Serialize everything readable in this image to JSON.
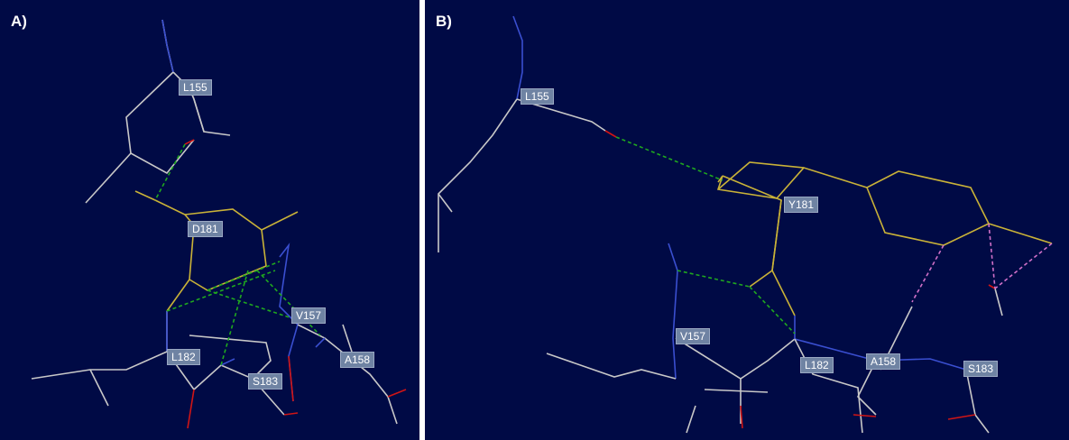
{
  "panels": [
    {
      "label": "A)",
      "residues": [
        "L155",
        "D181",
        "V157",
        "L182",
        "A158",
        "S183"
      ]
    },
    {
      "label": "B)",
      "residues": [
        "L155",
        "Y181",
        "V157",
        "L182",
        "A158",
        "S183"
      ]
    }
  ],
  "colors": {
    "background": "#000a45",
    "carbon": "#c8c8c8",
    "nitrogen": "#3a4fd0",
    "oxygen": "#d01515",
    "ligand": "#c9b238",
    "hbond_green": "#1fa81f",
    "hbond_pink": "#d070c8",
    "label_bg": "#6f83a3"
  }
}
